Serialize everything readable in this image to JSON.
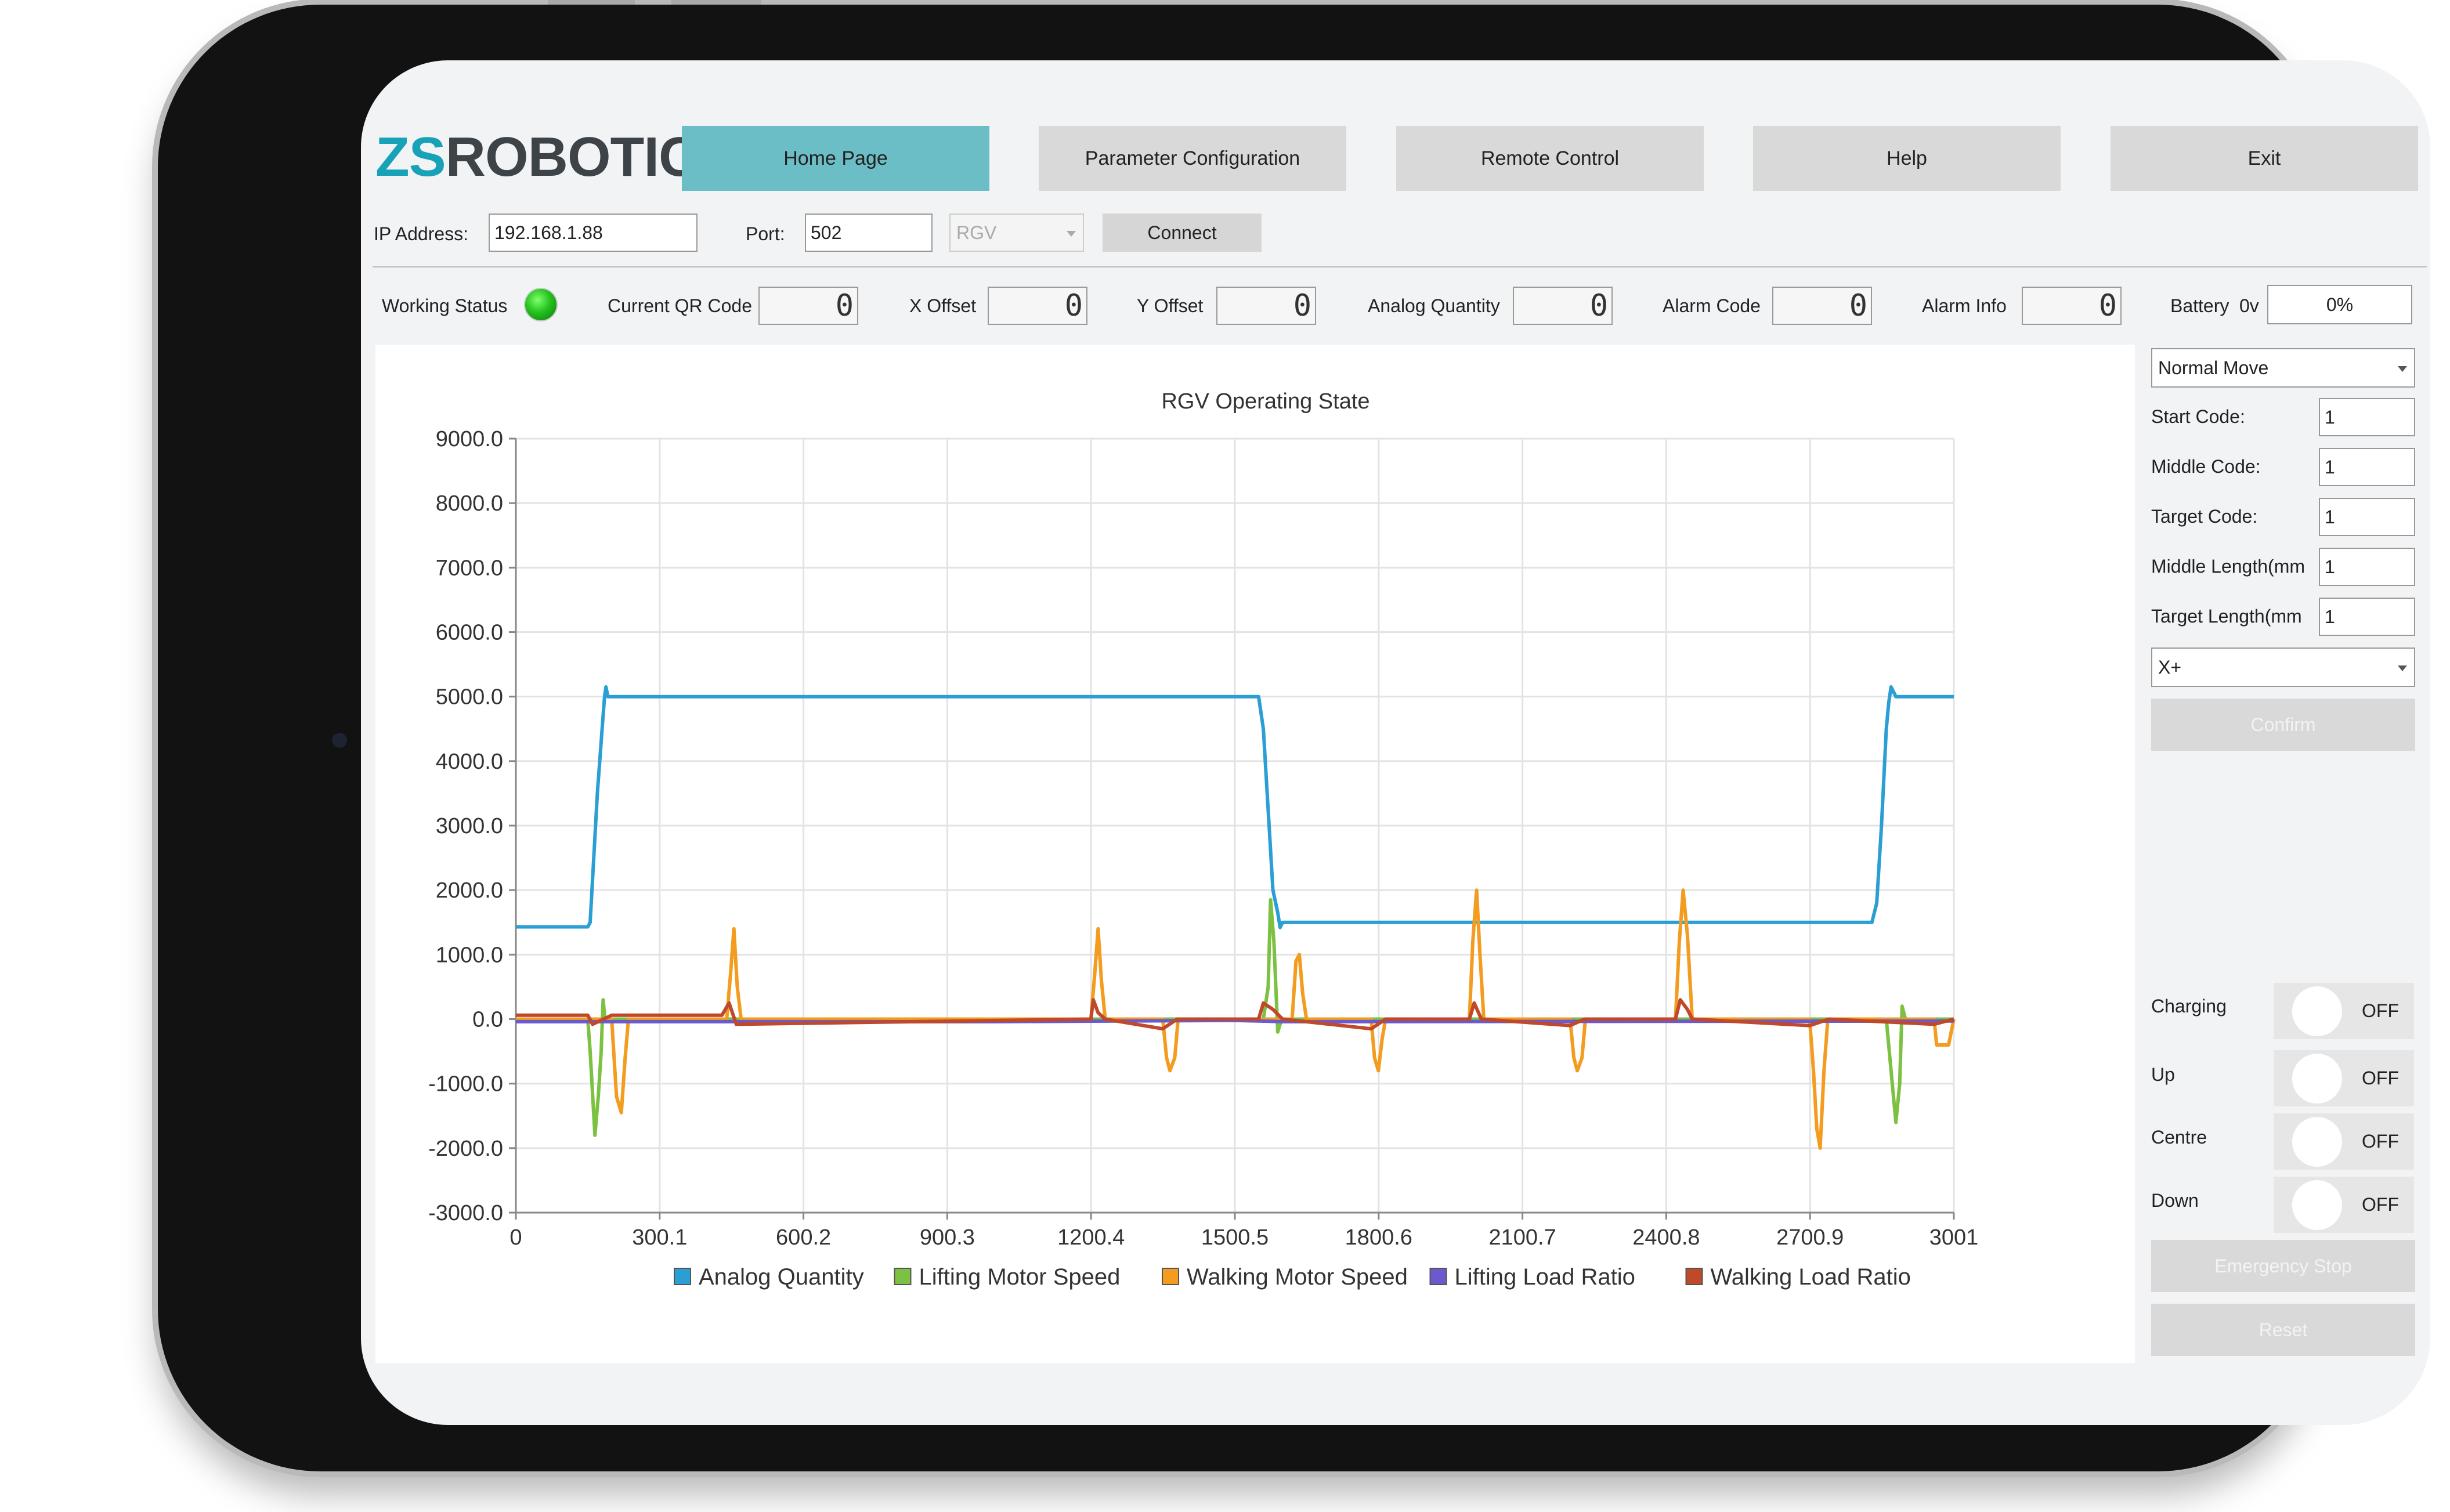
{
  "brand": {
    "logo_zs": "ZS",
    "logo_robotics": "ROBOTICS"
  },
  "nav": {
    "items": [
      {
        "label": "Home Page",
        "active": true
      },
      {
        "label": "Parameter Configuration",
        "active": false
      },
      {
        "label": "Remote Control",
        "active": false
      },
      {
        "label": "Help",
        "active": false
      },
      {
        "label": "Exit",
        "active": false
      }
    ]
  },
  "connection": {
    "ip_label": "IP Address:",
    "ip_value": "192.168.1.88",
    "port_label": "Port:",
    "port_value": "502",
    "device_select": "RGV",
    "connect_label": "Connect"
  },
  "status": {
    "working_status_label": "Working Status",
    "current_qr_label": "Current QR Code",
    "current_qr_value": "0",
    "x_offset_label": "X Offset",
    "x_offset_value": "0",
    "y_offset_label": "Y Offset",
    "y_offset_value": "0",
    "analog_label": "Analog Quantity",
    "analog_value": "0",
    "alarm_code_label": "Alarm Code",
    "alarm_code_value": "0",
    "alarm_info_label": "Alarm Info",
    "alarm_info_value": "0",
    "battery_label": "Battery",
    "battery_voltage": "0v",
    "battery_percent": "0%"
  },
  "control": {
    "mode_select": "Normal Move",
    "start_code_label": "Start Code:",
    "start_code_value": "1",
    "middle_code_label": "Middle Code:",
    "middle_code_value": "1",
    "target_code_label": "Target Code:",
    "target_code_value": "1",
    "middle_length_label": "Middle Length(mm",
    "middle_length_value": "1",
    "target_length_label": "Target Length(mm",
    "target_length_value": "1",
    "direction_select": "X+",
    "confirm_label": "Confirm",
    "toggles": [
      {
        "label": "Charging",
        "state": "OFF"
      },
      {
        "label": "Up",
        "state": "OFF"
      },
      {
        "label": "Centre",
        "state": "OFF"
      },
      {
        "label": "Down",
        "state": "OFF"
      }
    ],
    "emergency_stop_label": "Emergency Stop",
    "reset_label": "Reset"
  },
  "colors": {
    "accent": "#6bbdc6",
    "logo_teal": "#18a2b8",
    "status_green": "#25c21e"
  },
  "chart_data": {
    "type": "line",
    "title": "RGV Operating State",
    "xlim": [
      0,
      3001
    ],
    "ylim": [
      -3000,
      9000
    ],
    "x_ticks": [
      "0",
      "300.1",
      "600.2",
      "900.3",
      "1200.4",
      "1500.5",
      "1800.6",
      "2100.7",
      "2400.8",
      "2700.9",
      "3001"
    ],
    "y_ticks": [
      "9000.0",
      "8000.0",
      "7000.0",
      "6000.0",
      "5000.0",
      "4000.0",
      "3000.0",
      "2000.0",
      "1000.0",
      "0.0",
      "-1000.0",
      "-2000.0",
      "-3000.0"
    ],
    "grid": true,
    "legend_position": "bottom",
    "series": [
      {
        "name": "Analog Quantity",
        "color": "#2b9fd4",
        "points": [
          [
            0,
            1430
          ],
          [
            150,
            1430
          ],
          [
            155,
            1500
          ],
          [
            170,
            3500
          ],
          [
            180,
            4500
          ],
          [
            185,
            5000
          ],
          [
            188,
            5150
          ],
          [
            192,
            5000
          ],
          [
            1550,
            5000
          ],
          [
            1560,
            4500
          ],
          [
            1580,
            2000
          ],
          [
            1590,
            1650
          ],
          [
            1595,
            1420
          ],
          [
            1600,
            1500
          ],
          [
            2830,
            1500
          ],
          [
            2840,
            1800
          ],
          [
            2850,
            3000
          ],
          [
            2860,
            4500
          ],
          [
            2865,
            4900
          ],
          [
            2870,
            5150
          ],
          [
            2880,
            5000
          ],
          [
            3001,
            5000
          ]
        ]
      },
      {
        "name": "Lifting Motor Speed",
        "color": "#7dc142",
        "points": [
          [
            0,
            0
          ],
          [
            150,
            0
          ],
          [
            155,
            -500
          ],
          [
            165,
            -1800
          ],
          [
            172,
            -1200
          ],
          [
            178,
            -500
          ],
          [
            182,
            300
          ],
          [
            186,
            0
          ],
          [
            1560,
            0
          ],
          [
            1570,
            500
          ],
          [
            1575,
            1850
          ],
          [
            1582,
            1200
          ],
          [
            1590,
            -200
          ],
          [
            1598,
            0
          ],
          [
            2860,
            0
          ],
          [
            2870,
            -800
          ],
          [
            2880,
            -1600
          ],
          [
            2888,
            -1000
          ],
          [
            2893,
            200
          ],
          [
            2900,
            0
          ],
          [
            3001,
            0
          ]
        ]
      },
      {
        "name": "Walking Motor Speed",
        "color": "#f39c1f",
        "points": [
          [
            0,
            0
          ],
          [
            200,
            0
          ],
          [
            210,
            -1200
          ],
          [
            220,
            -1450
          ],
          [
            228,
            -600
          ],
          [
            235,
            0
          ],
          [
            440,
            0
          ],
          [
            448,
            700
          ],
          [
            455,
            1400
          ],
          [
            462,
            500
          ],
          [
            470,
            0
          ],
          [
            1200,
            0
          ],
          [
            1208,
            700
          ],
          [
            1215,
            1400
          ],
          [
            1222,
            600
          ],
          [
            1230,
            0
          ],
          [
            1350,
            0
          ],
          [
            1358,
            -600
          ],
          [
            1365,
            -800
          ],
          [
            1375,
            -600
          ],
          [
            1382,
            0
          ],
          [
            1620,
            0
          ],
          [
            1628,
            900
          ],
          [
            1635,
            1000
          ],
          [
            1642,
            400
          ],
          [
            1650,
            0
          ],
          [
            1785,
            0
          ],
          [
            1792,
            -600
          ],
          [
            1800,
            -800
          ],
          [
            1808,
            -300
          ],
          [
            1815,
            0
          ],
          [
            1990,
            0
          ],
          [
            1997,
            1200
          ],
          [
            2005,
            2000
          ],
          [
            2012,
            1000
          ],
          [
            2020,
            0
          ],
          [
            2200,
            0
          ],
          [
            2208,
            -600
          ],
          [
            2215,
            -800
          ],
          [
            2225,
            -600
          ],
          [
            2232,
            0
          ],
          [
            2420,
            0
          ],
          [
            2428,
            1200
          ],
          [
            2436,
            2000
          ],
          [
            2445,
            1300
          ],
          [
            2455,
            0
          ],
          [
            2700,
            0
          ],
          [
            2708,
            -800
          ],
          [
            2715,
            -1700
          ],
          [
            2722,
            -2000
          ],
          [
            2730,
            -800
          ],
          [
            2738,
            0
          ],
          [
            2960,
            0
          ],
          [
            2965,
            -400
          ],
          [
            2990,
            -400
          ],
          [
            3001,
            0
          ]
        ]
      },
      {
        "name": "Lifting Load Ratio",
        "color": "#6a5acd",
        "points": [
          [
            0,
            -40
          ],
          [
            1000,
            -40
          ],
          [
            1500,
            -20
          ],
          [
            1600,
            -40
          ],
          [
            3001,
            -30
          ]
        ]
      },
      {
        "name": "Walking Load Ratio",
        "color": "#c0482b",
        "points": [
          [
            0,
            60
          ],
          [
            150,
            60
          ],
          [
            160,
            -80
          ],
          [
            200,
            60
          ],
          [
            430,
            60
          ],
          [
            445,
            250
          ],
          [
            460,
            -80
          ],
          [
            1200,
            0
          ],
          [
            1205,
            300
          ],
          [
            1215,
            100
          ],
          [
            1230,
            0
          ],
          [
            1350,
            -150
          ],
          [
            1380,
            0
          ],
          [
            1550,
            0
          ],
          [
            1560,
            250
          ],
          [
            1580,
            150
          ],
          [
            1600,
            0
          ],
          [
            1785,
            -150
          ],
          [
            1815,
            0
          ],
          [
            1990,
            0
          ],
          [
            2000,
            250
          ],
          [
            2015,
            0
          ],
          [
            2200,
            -100
          ],
          [
            2230,
            0
          ],
          [
            2420,
            0
          ],
          [
            2430,
            300
          ],
          [
            2445,
            150
          ],
          [
            2455,
            0
          ],
          [
            2700,
            -100
          ],
          [
            2740,
            0
          ],
          [
            2960,
            -80
          ],
          [
            3001,
            0
          ]
        ]
      }
    ]
  }
}
